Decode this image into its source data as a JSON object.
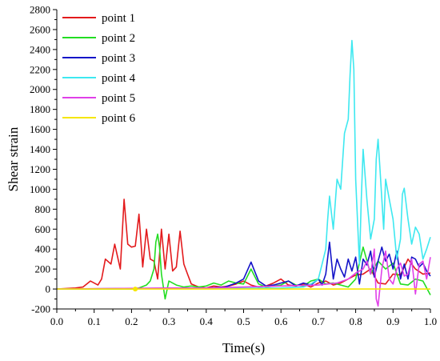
{
  "chart_data": {
    "type": "line",
    "title": "",
    "xlabel": "Time(s)",
    "ylabel": "Shear strain",
    "xlim": [
      0.0,
      1.0
    ],
    "ylim": [
      -200,
      2800
    ],
    "xticks": [
      0.0,
      0.1,
      0.2,
      0.3,
      0.4,
      0.5,
      0.6,
      0.7,
      0.8,
      0.9,
      1.0
    ],
    "xtick_labels": [
      "0.0",
      "0.1",
      "0.2",
      "0.3",
      "0.4",
      "0.5",
      "0.6",
      "0.7",
      "0.8",
      "0.9",
      "1.0"
    ],
    "yticks": [
      -200,
      0,
      200,
      400,
      600,
      800,
      1000,
      1200,
      1400,
      1600,
      1800,
      2000,
      2200,
      2400,
      2600,
      2800
    ],
    "ytick_labels": [
      "-200",
      "0",
      "200",
      "400",
      "600",
      "800",
      "1000",
      "1200",
      "1400",
      "1600",
      "1800",
      "2000",
      "2200",
      "2400",
      "2600",
      "2800"
    ],
    "grid": false,
    "legend_position": "top-left",
    "series": [
      {
        "name": "point  1",
        "color": "#e31a1c",
        "x": [
          0.0,
          0.05,
          0.07,
          0.09,
          0.11,
          0.12,
          0.13,
          0.145,
          0.155,
          0.17,
          0.18,
          0.19,
          0.2,
          0.21,
          0.22,
          0.23,
          0.24,
          0.25,
          0.26,
          0.27,
          0.28,
          0.29,
          0.3,
          0.31,
          0.32,
          0.33,
          0.34,
          0.35,
          0.36,
          0.38,
          0.4,
          0.42,
          0.44,
          0.46,
          0.48,
          0.5,
          0.52,
          0.54,
          0.56,
          0.58,
          0.6,
          0.62,
          0.64,
          0.66,
          0.68,
          0.7,
          0.72,
          0.74,
          0.76,
          0.78,
          0.8,
          0.82,
          0.84,
          0.86,
          0.88,
          0.9,
          0.92,
          0.94,
          0.96,
          0.98,
          1.0
        ],
        "y": [
          0,
          10,
          20,
          80,
          40,
          100,
          300,
          250,
          450,
          200,
          900,
          450,
          420,
          430,
          750,
          220,
          600,
          300,
          280,
          100,
          600,
          200,
          550,
          180,
          220,
          580,
          250,
          150,
          50,
          20,
          10,
          30,
          20,
          30,
          50,
          80,
          40,
          20,
          30,
          60,
          100,
          40,
          30,
          50,
          20,
          60,
          80,
          40,
          60,
          100,
          140,
          150,
          200,
          60,
          50,
          150,
          140,
          300,
          200,
          150,
          160
        ]
      },
      {
        "name": "point  2",
        "color": "#22dd22",
        "x": [
          0.0,
          0.15,
          0.2,
          0.22,
          0.24,
          0.25,
          0.26,
          0.265,
          0.27,
          0.275,
          0.28,
          0.29,
          0.3,
          0.32,
          0.34,
          0.36,
          0.38,
          0.4,
          0.42,
          0.44,
          0.46,
          0.48,
          0.5,
          0.52,
          0.54,
          0.56,
          0.58,
          0.6,
          0.62,
          0.64,
          0.66,
          0.68,
          0.7,
          0.72,
          0.74,
          0.76,
          0.78,
          0.8,
          0.82,
          0.84,
          0.86,
          0.88,
          0.9,
          0.92,
          0.94,
          0.96,
          0.98,
          1.0
        ],
        "y": [
          0,
          0,
          0,
          10,
          40,
          80,
          200,
          470,
          550,
          420,
          150,
          -100,
          80,
          40,
          20,
          30,
          20,
          30,
          60,
          40,
          80,
          60,
          50,
          200,
          50,
          20,
          30,
          40,
          80,
          40,
          30,
          80,
          100,
          50,
          60,
          40,
          20,
          100,
          420,
          150,
          280,
          200,
          260,
          50,
          40,
          100,
          80,
          -60
        ]
      },
      {
        "name": "point  3",
        "color": "#1414c8",
        "x": [
          0.0,
          0.4,
          0.45,
          0.48,
          0.5,
          0.52,
          0.54,
          0.56,
          0.58,
          0.6,
          0.62,
          0.64,
          0.66,
          0.68,
          0.7,
          0.71,
          0.72,
          0.73,
          0.74,
          0.75,
          0.76,
          0.77,
          0.78,
          0.79,
          0.8,
          0.81,
          0.82,
          0.83,
          0.84,
          0.85,
          0.86,
          0.87,
          0.88,
          0.89,
          0.9,
          0.91,
          0.92,
          0.93,
          0.94,
          0.95,
          0.96,
          0.97,
          0.98,
          0.99,
          1.0
        ],
        "y": [
          0,
          10,
          20,
          60,
          100,
          270,
          80,
          30,
          40,
          60,
          80,
          30,
          60,
          40,
          100,
          40,
          150,
          470,
          100,
          300,
          200,
          120,
          300,
          180,
          320,
          50,
          300,
          240,
          380,
          120,
          280,
          420,
          280,
          350,
          200,
          380,
          100,
          250,
          100,
          320,
          300,
          220,
          260,
          180,
          130
        ]
      },
      {
        "name": "point  4",
        "color": "#3ee8f0",
        "x": [
          0.0,
          0.6,
          0.66,
          0.68,
          0.7,
          0.71,
          0.72,
          0.725,
          0.73,
          0.74,
          0.75,
          0.76,
          0.77,
          0.78,
          0.785,
          0.79,
          0.795,
          0.8,
          0.81,
          0.815,
          0.82,
          0.83,
          0.84,
          0.85,
          0.855,
          0.86,
          0.865,
          0.87,
          0.875,
          0.88,
          0.89,
          0.9,
          0.91,
          0.92,
          0.925,
          0.93,
          0.94,
          0.95,
          0.96,
          0.97,
          0.98,
          0.99,
          1.0
        ],
        "y": [
          0,
          10,
          20,
          50,
          100,
          250,
          400,
          700,
          930,
          600,
          1100,
          1000,
          1560,
          1700,
          2150,
          2490,
          2200,
          1100,
          250,
          900,
          1400,
          900,
          500,
          700,
          1300,
          1500,
          1200,
          900,
          600,
          1100,
          900,
          700,
          300,
          500,
          950,
          1010,
          700,
          450,
          620,
          550,
          300,
          400,
          520
        ]
      },
      {
        "name": "point  5",
        "color": "#e040e8",
        "x": [
          0.0,
          0.3,
          0.4,
          0.5,
          0.6,
          0.7,
          0.75,
          0.78,
          0.8,
          0.82,
          0.83,
          0.84,
          0.85,
          0.855,
          0.86,
          0.87,
          0.88,
          0.89,
          0.9,
          0.91,
          0.92,
          0.93,
          0.94,
          0.95,
          0.96,
          0.97,
          0.98,
          0.99,
          1.0
        ],
        "y": [
          0,
          10,
          10,
          20,
          30,
          40,
          60,
          100,
          160,
          200,
          280,
          150,
          400,
          -100,
          -170,
          200,
          380,
          100,
          50,
          200,
          260,
          130,
          150,
          300,
          -50,
          250,
          280,
          100,
          320
        ]
      },
      {
        "name": "point  6",
        "color": "#f5e600",
        "x": [
          0.0,
          0.1,
          0.2,
          0.21,
          0.22,
          0.3,
          0.4,
          0.5,
          0.6,
          0.7,
          0.8,
          0.9,
          1.0
        ],
        "y": [
          0,
          0,
          0,
          0,
          0,
          0,
          0,
          0,
          0,
          0,
          0,
          0,
          0
        ],
        "markers_x": [
          0.21
        ]
      }
    ]
  }
}
